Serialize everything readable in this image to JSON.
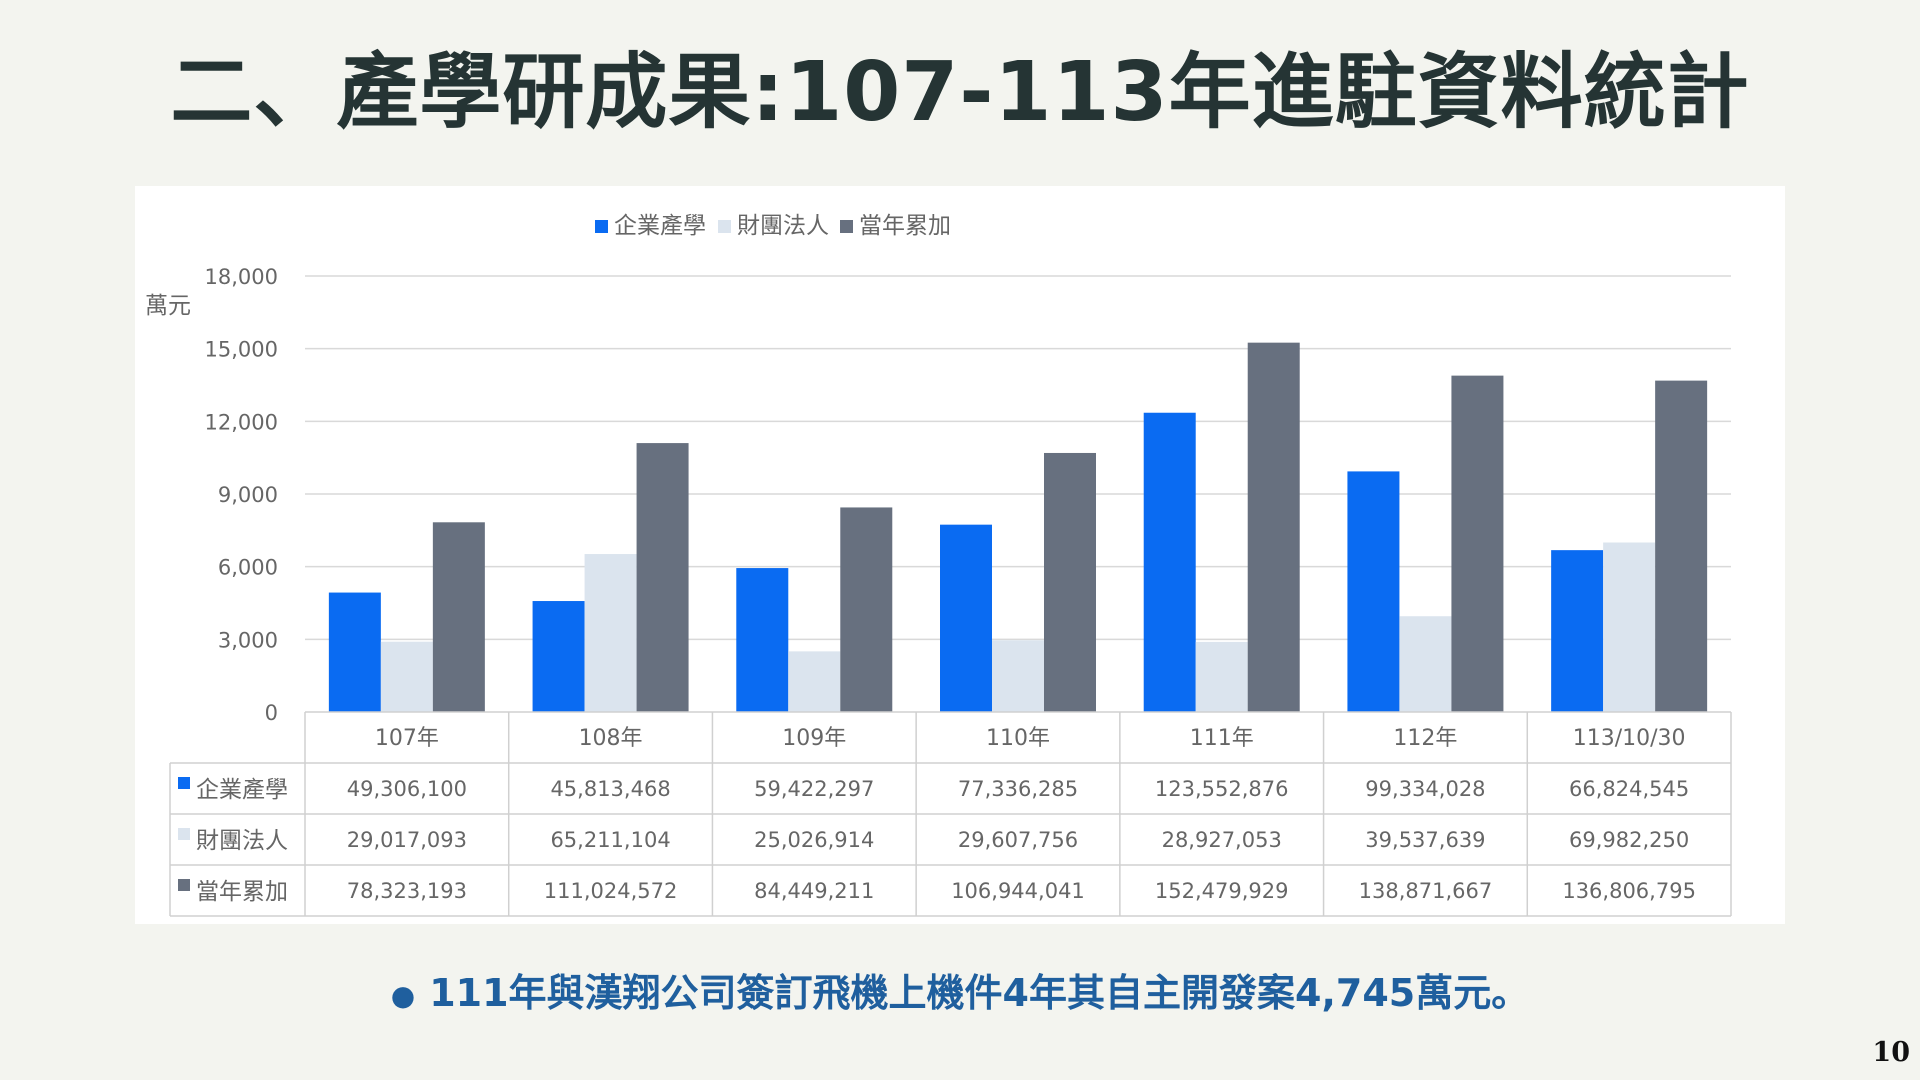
{
  "title": "二、產學研成果:107-113年進駐資料統計",
  "note": "111年與漢翔公司簽訂飛機上機件4年其自主開發案4,745萬元。",
  "page_number": "10",
  "colors": {
    "enterprise": "#0a6bf2",
    "foundation": "#dbe4ee",
    "total": "#67707f"
  },
  "chart_data": {
    "type": "bar",
    "title": "",
    "xlabel": "",
    "ylabel": "萬元",
    "ylim": [
      0,
      18000
    ],
    "yticks": [
      "0",
      "3,000",
      "6,000",
      "9,000",
      "12,000",
      "15,000",
      "18,000"
    ],
    "categories": [
      "107年",
      "108年",
      "109年",
      "110年",
      "111年",
      "112年",
      "113/10/30"
    ],
    "legend_position": "top-center",
    "grid": true,
    "series": [
      {
        "name": "企業產學",
        "color": "#0a6bf2",
        "values": [
          4931,
          4581,
          5942,
          7734,
          12355,
          9933,
          6682
        ],
        "table_values": [
          "49,306,100",
          "45,813,468",
          "59,422,297",
          "77,336,285",
          "123,552,876",
          "99,334,028",
          "66,824,545"
        ]
      },
      {
        "name": "財團法人",
        "color": "#dbe4ee",
        "values": [
          2902,
          6521,
          2503,
          2961,
          2893,
          3954,
          6998
        ],
        "table_values": [
          "29,017,093",
          "65,211,104",
          "25,026,914",
          "29,607,756",
          "28,927,053",
          "39,537,639",
          "69,982,250"
        ]
      },
      {
        "name": "當年累加",
        "color": "#67707f",
        "values": [
          7832,
          11102,
          8445,
          10694,
          15248,
          13887,
          13681
        ],
        "table_values": [
          "78,323,193",
          "111,024,572",
          "84,449,211",
          "106,944,041",
          "152,479,929",
          "138,871,667",
          "136,806,795"
        ]
      }
    ]
  }
}
